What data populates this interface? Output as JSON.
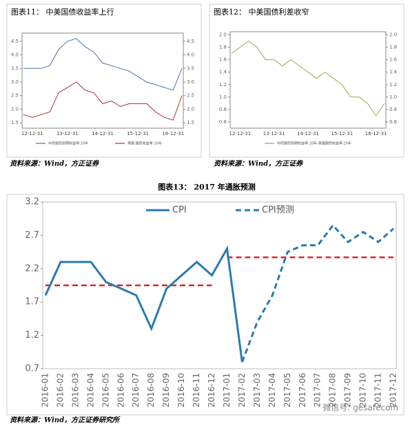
{
  "chart_data": [
    {
      "type": "line",
      "title": "图表11：  中美国债收益率上行",
      "source": "资料来源：Wind，方正证券",
      "categories": [
        null,
        "12-12-31",
        null,
        null,
        null,
        "13-12-31",
        null,
        null,
        null,
        "14-12-31",
        null,
        null,
        null,
        "15-12-31",
        null,
        null,
        null,
        "16-12-31",
        null
      ],
      "series": [
        {
          "name": "中债国债到期收益率:10年",
          "color": "#4a6fa5",
          "values": [
            3.5,
            3.5,
            3.5,
            3.6,
            4.2,
            4.5,
            4.6,
            4.3,
            4.1,
            3.7,
            3.6,
            3.5,
            3.4,
            3.2,
            3.0,
            2.9,
            2.8,
            2.7,
            3.5
          ]
        },
        {
          "name": "美国:国债收益率:10年",
          "color": "#b0303a",
          "axis": "y2",
          "values": [
            1.8,
            1.7,
            1.8,
            1.9,
            2.6,
            2.8,
            3.0,
            2.7,
            2.6,
            2.2,
            2.3,
            2.1,
            2.2,
            2.2,
            2.2,
            1.9,
            1.7,
            1.6,
            2.5
          ]
        }
      ],
      "ylim": [
        1.3,
        4.8
      ],
      "yticks": [
        1.5,
        {
          "value": 2,
          "label": "2.0"
        },
        2.5,
        {
          "value": 3,
          "label": "3.0"
        },
        3.5,
        {
          "value": 4,
          "label": "4.0"
        },
        4.5
      ],
      "y2lim": [
        1.3,
        4.8
      ],
      "y2ticks": [
        1.5,
        {
          "value": 2,
          "label": "2.0"
        },
        2.5,
        {
          "value": 3,
          "label": "3.0"
        },
        3.5,
        {
          "value": 4,
          "label": "4.0"
        },
        4.5
      ],
      "legend": "bottom"
    },
    {
      "type": "line",
      "title": "图表12：  中美国债利差收窄",
      "source": "资料来源：Wind，方正证券",
      "categories": [
        null,
        "12-12-31",
        null,
        null,
        null,
        "13-12-31",
        null,
        null,
        null,
        "14-12-31",
        null,
        null,
        null,
        "15-12-31",
        null,
        null,
        null,
        "16-12-31",
        null
      ],
      "series": [
        {
          "name": "中债国债到期收益率:10年-美国国债收益率:10年",
          "color": "#8db04b",
          "values": [
            1.7,
            1.8,
            1.9,
            1.8,
            1.6,
            1.6,
            1.5,
            1.6,
            1.5,
            1.4,
            1.3,
            1.4,
            1.3,
            1.2,
            1.0,
            1.0,
            0.9,
            0.7,
            0.9
          ]
        }
      ],
      "ylim": [
        0.5,
        2.05
      ],
      "yticks": [
        0.6,
        0.8,
        {
          "value": 1,
          "label": "1.0"
        },
        1.2,
        1.4,
        1.6,
        1.8,
        {
          "value": 2,
          "label": "2.0"
        }
      ],
      "y2lim": [
        0.5,
        2.05
      ],
      "y2ticks": [
        0.6,
        0.8,
        {
          "value": 1,
          "label": "1.0"
        },
        1.2,
        1.4,
        1.6,
        1.8,
        {
          "value": 2,
          "label": "2.0"
        }
      ],
      "legend": "bottom"
    },
    {
      "type": "line",
      "title": "图表13：   2017 年通胀预测",
      "source": "资料来源：Wind，方正证券研究所",
      "categories": [
        "2016-01",
        "2016-02",
        "2016-03",
        "2016-04",
        "2016-05",
        "2016-06",
        "2016-07",
        "2016-08",
        "2016-09",
        "2016-10",
        "2016-11",
        "2016-12",
        "2017-01",
        "2017-02",
        "2017-03",
        "2017-04",
        "2017-05",
        "2017-06",
        "2017-07",
        "2017-08",
        "2017-09",
        "2017-10",
        "2017-11",
        "2017-12"
      ],
      "series": [
        {
          "name": "CPI",
          "color": "#2a7ab0",
          "style": "solid",
          "values": [
            1.8,
            2.3,
            2.3,
            2.3,
            2.0,
            1.9,
            1.8,
            1.3,
            1.9,
            2.1,
            2.3,
            2.1,
            2.5,
            0.8,
            null,
            null,
            null,
            null,
            null,
            null,
            null,
            null,
            null,
            null
          ]
        },
        {
          "name": "CPI预测",
          "color": "#2a7ab0",
          "style": "dashed",
          "values": [
            null,
            null,
            null,
            null,
            null,
            null,
            null,
            null,
            null,
            null,
            null,
            null,
            null,
            0.8,
            1.4,
            1.8,
            2.45,
            2.55,
            2.55,
            2.85,
            2.6,
            2.75,
            2.6,
            2.8
          ]
        }
      ],
      "reference_lines": [
        {
          "value": 1.95,
          "from": "2016-01",
          "to": "2016-12",
          "color": "#d62728"
        },
        {
          "value": 2.37,
          "from": "2017-01",
          "to": "2017-12",
          "color": "#d62728"
        }
      ],
      "ylim": [
        0.7,
        3.2
      ],
      "yticks": [
        0.7,
        1.2,
        1.7,
        2.2,
        2.7,
        3.2
      ],
      "legend": "top"
    }
  ],
  "watermark": "微信号: gesafecom"
}
